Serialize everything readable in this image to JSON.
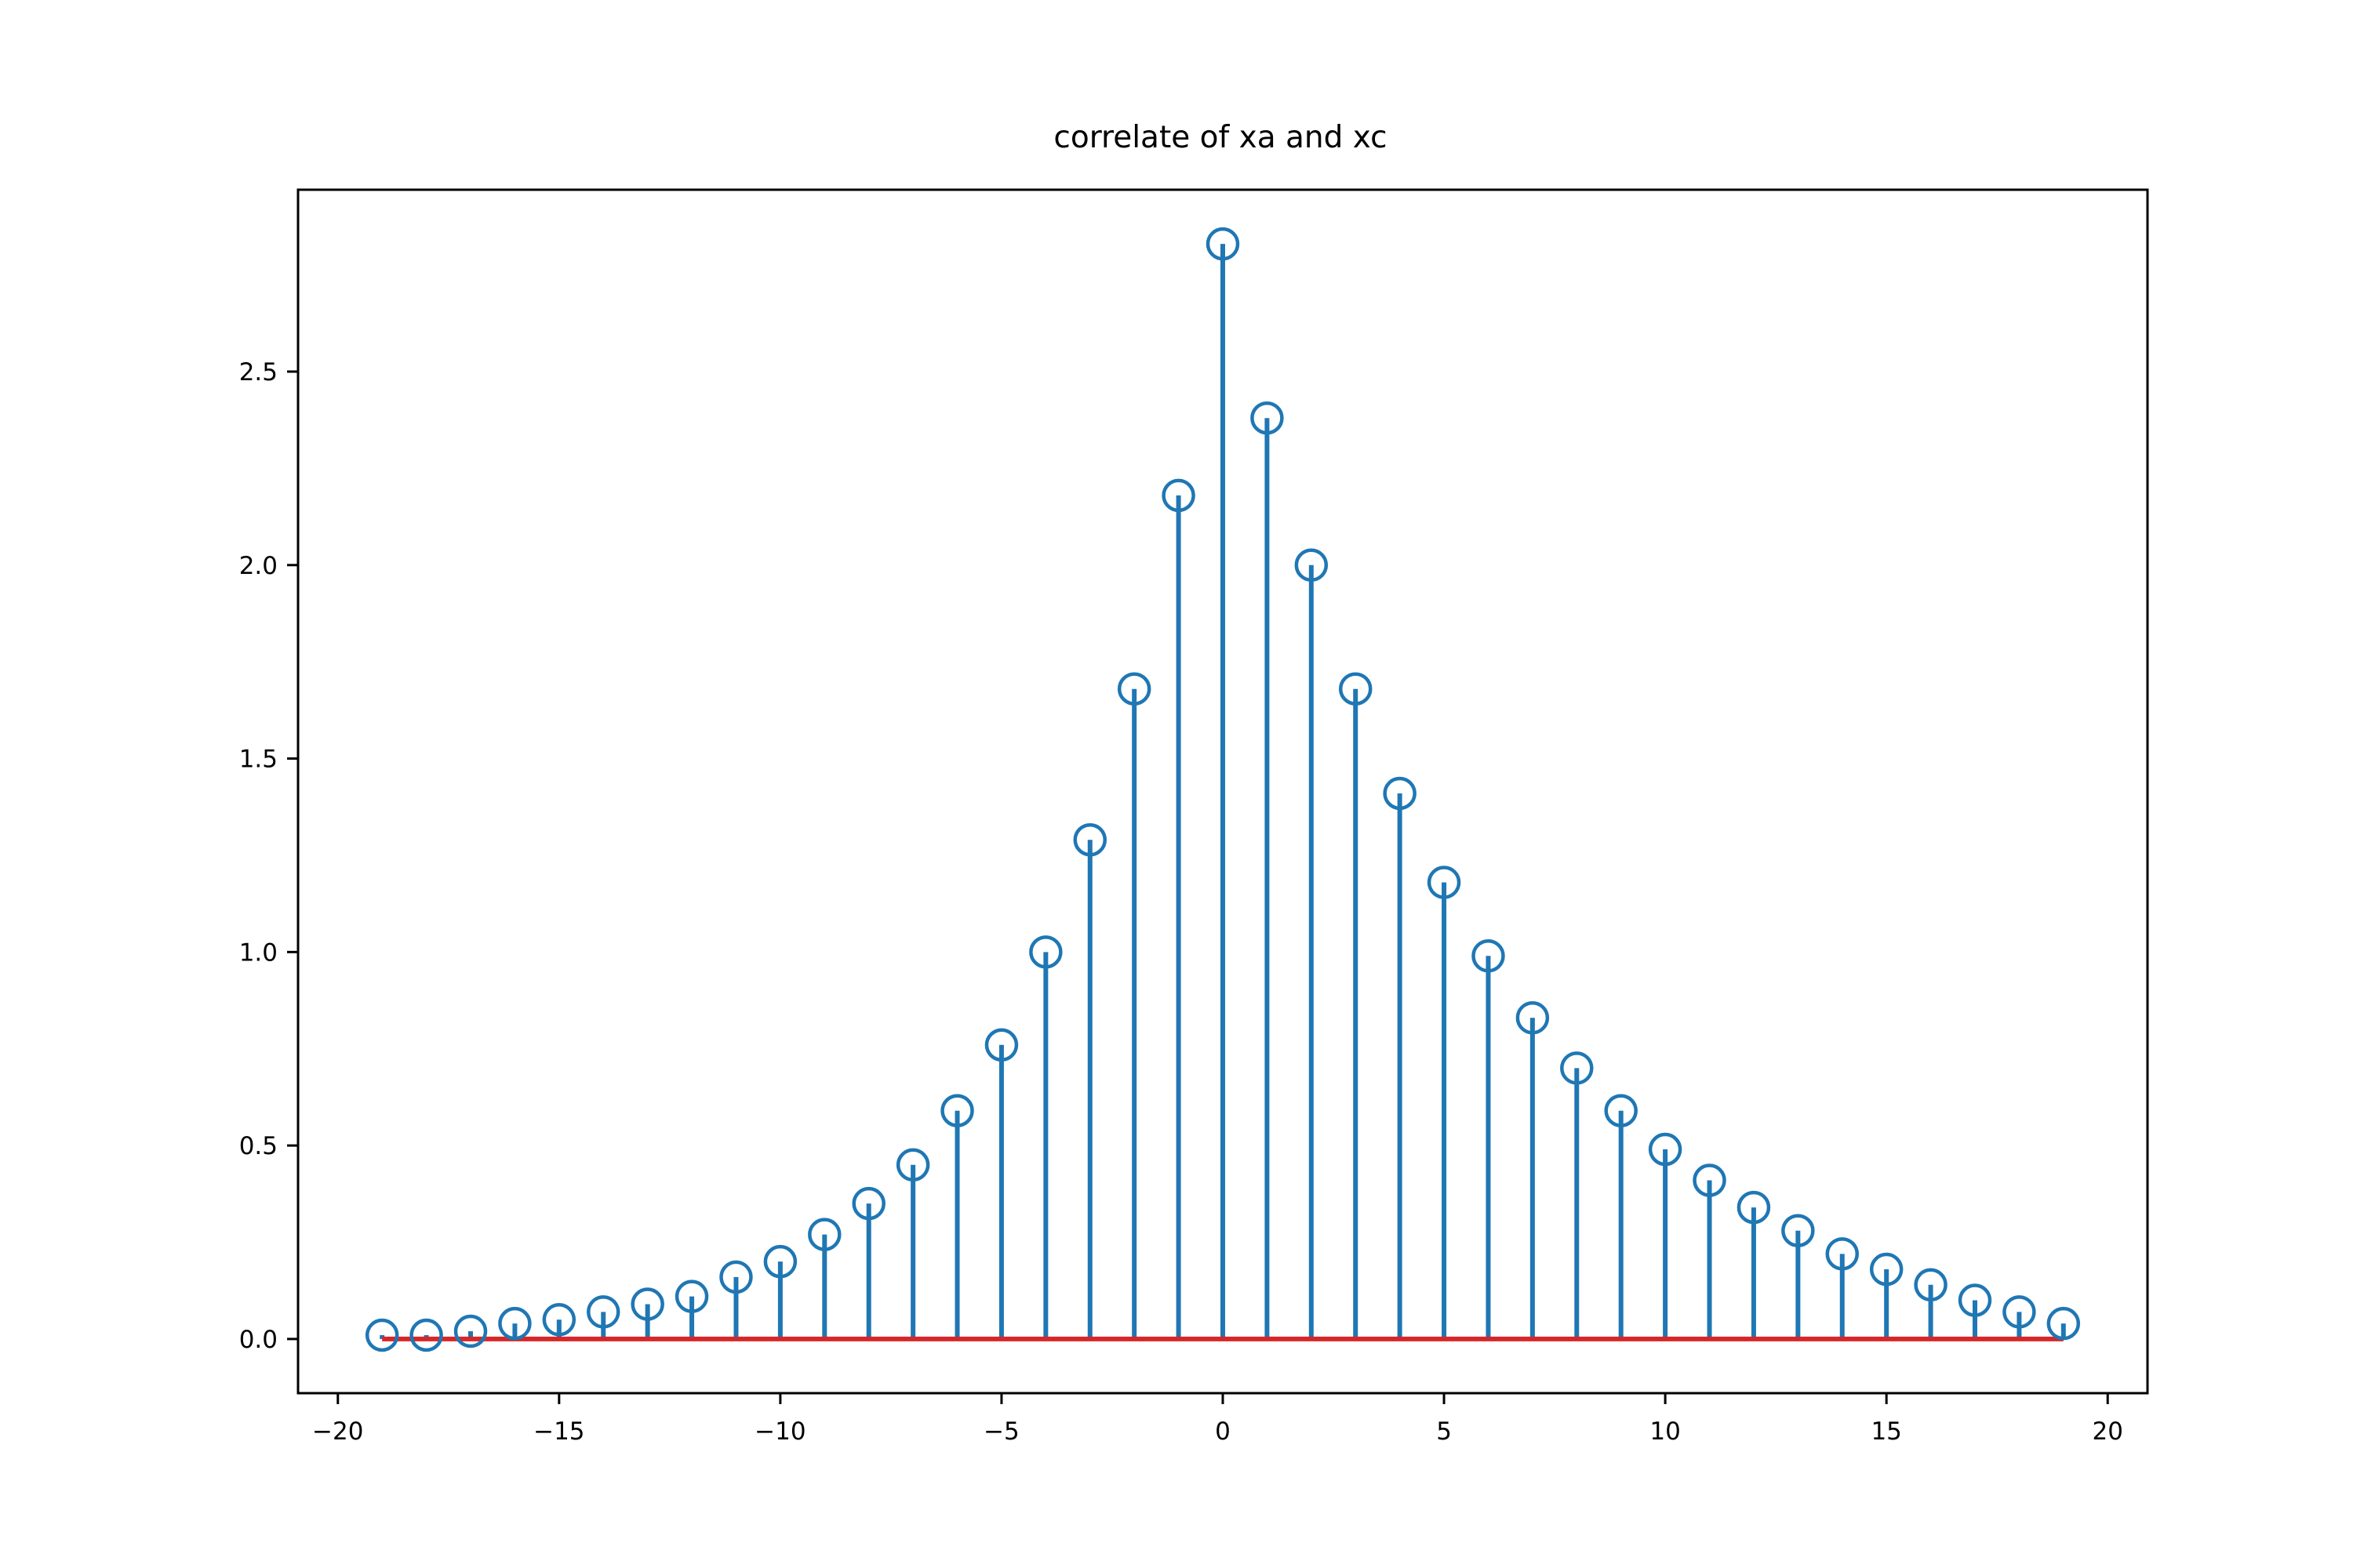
{
  "chart_data": {
    "type": "stem",
    "title": "correlate of xa and xc",
    "xlabel": "",
    "ylabel": "",
    "xlim": [
      -20.9,
      20.9
    ],
    "ylim": [
      -0.14,
      2.97
    ],
    "xticks": [
      -20,
      -15,
      -10,
      -5,
      0,
      5,
      10,
      15,
      20
    ],
    "xtick_labels": [
      "−20",
      "−15",
      "−10",
      "−5",
      "0",
      "5",
      "10",
      "15",
      "20"
    ],
    "yticks": [
      0.0,
      0.5,
      1.0,
      1.5,
      2.0,
      2.5
    ],
    "ytick_labels": [
      "0.0",
      "0.5",
      "1.0",
      "1.5",
      "2.0",
      "2.5"
    ],
    "grid": false,
    "x": [
      -19,
      -18,
      -17,
      -16,
      -15,
      -14,
      -13,
      -12,
      -11,
      -10,
      -9,
      -8,
      -7,
      -6,
      -5,
      -4,
      -3,
      -2,
      -1,
      0,
      1,
      2,
      3,
      4,
      5,
      6,
      7,
      8,
      9,
      10,
      11,
      12,
      13,
      14,
      15,
      16,
      17,
      18,
      19
    ],
    "values": [
      0.01,
      0.01,
      0.02,
      0.04,
      0.05,
      0.07,
      0.09,
      0.11,
      0.16,
      0.2,
      0.27,
      0.35,
      0.45,
      0.59,
      0.76,
      1.0,
      1.29,
      1.68,
      2.18,
      2.83,
      2.38,
      2.0,
      1.68,
      1.41,
      1.18,
      0.99,
      0.83,
      0.7,
      0.59,
      0.49,
      0.41,
      0.34,
      0.28,
      0.22,
      0.18,
      0.14,
      0.1,
      0.07,
      0.04
    ],
    "baseline": 0,
    "colors": {
      "stem": "#1f77b4",
      "marker": "#1f77b4",
      "baseline": "#d62728",
      "axes": "#000000"
    }
  }
}
